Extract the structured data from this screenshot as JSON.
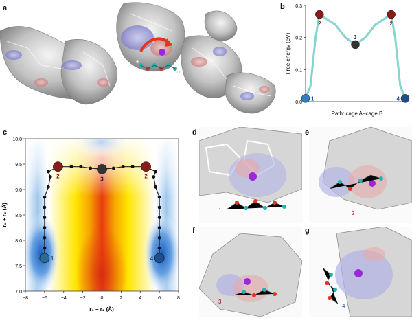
{
  "panels": {
    "a": {
      "label": "a"
    },
    "b": {
      "label": "b"
    },
    "c": {
      "label": "c"
    },
    "d": {
      "label": "d",
      "site": "1"
    },
    "e": {
      "label": "e",
      "site": "2"
    },
    "f": {
      "label": "f",
      "site": "3"
    },
    "g": {
      "label": "g",
      "site": "4"
    }
  },
  "chart_data": [
    {
      "type": "line",
      "panel": "b",
      "ylabel": "Free energy (eV)",
      "xlabel": "Path: cage A–cage B",
      "ylim": [
        0,
        0.3
      ],
      "yticks": [
        "0.0",
        "0.1",
        "0.2",
        "0.3"
      ],
      "x": [
        0,
        0.05,
        0.1,
        0.14,
        0.2,
        0.3,
        0.4,
        0.5,
        0.6,
        0.7,
        0.8,
        0.86,
        0.9,
        0.95,
        1.0
      ],
      "values": [
        0.01,
        0.05,
        0.2,
        0.272,
        0.26,
        0.24,
        0.2,
        0.178,
        0.2,
        0.24,
        0.26,
        0.272,
        0.2,
        0.05,
        0.01
      ],
      "points": [
        {
          "label": "1",
          "x": 0,
          "y": 0.01,
          "color": "#2f7fc1"
        },
        {
          "label": "2",
          "x": 0.14,
          "y": 0.272,
          "color": "#8b1a1a"
        },
        {
          "label": "3",
          "x": 0.5,
          "y": 0.178,
          "color": "#333333"
        },
        {
          "label": "2",
          "x": 0.86,
          "y": 0.272,
          "color": "#8b1a1a"
        },
        {
          "label": "4",
          "x": 1.0,
          "y": 0.01,
          "color": "#1f4e8c"
        }
      ],
      "line_color": "#86d3cf",
      "grid": false
    },
    {
      "type": "heatmap",
      "panel": "c",
      "xlabel": "r₁ − r₂ (Å)",
      "ylabel": "r₁ + r₂ (Å)",
      "xlim": [
        -8,
        8
      ],
      "ylim": [
        7.0,
        10.0
      ],
      "xticks": [
        "−8",
        "−6",
        "−4",
        "−2",
        "0",
        "2",
        "4",
        "6",
        "8"
      ],
      "yticks": [
        "7.0",
        "7.5",
        "8.0",
        "8.5",
        "9.0",
        "9.5",
        "10.0"
      ],
      "path_x": [
        -6,
        -6,
        -6,
        -6,
        -6,
        -6,
        -6,
        -5.6,
        -5.4,
        -5.6,
        -4.6,
        -3.2,
        -2.2,
        -1.2,
        0,
        1.2,
        2.2,
        3.2,
        4.6,
        5.6,
        5.4,
        5.6,
        6,
        6,
        6,
        6,
        6,
        6,
        6
      ],
      "path_y": [
        7.65,
        7.85,
        8.05,
        8.25,
        8.45,
        8.65,
        8.85,
        9.05,
        9.25,
        9.35,
        9.45,
        9.45,
        9.45,
        9.42,
        9.4,
        9.42,
        9.45,
        9.45,
        9.45,
        9.35,
        9.25,
        9.05,
        8.85,
        8.65,
        8.45,
        8.25,
        8.05,
        7.85,
        7.65
      ],
      "markers": [
        {
          "label": "1",
          "x": -6,
          "y": 7.65,
          "color": "#2a6b96"
        },
        {
          "label": "2",
          "x": -4.6,
          "y": 9.45,
          "color": "#8b1a1a"
        },
        {
          "label": "3",
          "x": 0,
          "y": 9.4,
          "color": "#333333"
        },
        {
          "label": "2",
          "x": 4.6,
          "y": 9.45,
          "color": "#8b1a1a"
        },
        {
          "label": "4",
          "x": 6,
          "y": 7.65,
          "color": "#1f4e8c"
        }
      ],
      "colormap": [
        "#d42a10",
        "#f6a000",
        "#ffee00",
        "#ffffff",
        "#3a7fd0"
      ]
    }
  ]
}
